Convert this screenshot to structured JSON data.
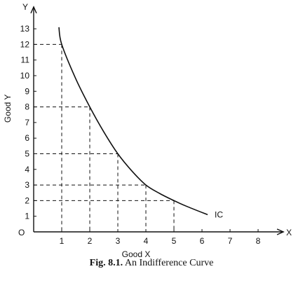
{
  "chart_data": {
    "type": "line",
    "x_axis_label": "Good X",
    "y_axis_label": "Good Y",
    "x_axis_letter": "X",
    "y_axis_letter": "Y",
    "origin_label": "O",
    "x_ticks": [
      1,
      2,
      3,
      4,
      5,
      6,
      7,
      8
    ],
    "y_ticks": [
      1,
      2,
      3,
      4,
      5,
      6,
      7,
      8,
      9,
      10,
      11,
      12,
      13
    ],
    "xlim": [
      0,
      8.9
    ],
    "ylim": [
      0,
      14.4
    ],
    "series": [
      {
        "name": "IC",
        "x": [
          0.9,
          1,
          1.5,
          2,
          2.5,
          3,
          3.5,
          4,
          4.5,
          5,
          5.5,
          6.2
        ],
        "y": [
          13.1,
          12,
          9.8,
          8,
          6.4,
          5,
          3.9,
          3,
          2.45,
          2,
          1.6,
          1.1
        ]
      }
    ],
    "reference_points": [
      {
        "x": 1,
        "y": 12
      },
      {
        "x": 2,
        "y": 8
      },
      {
        "x": 3,
        "y": 5
      },
      {
        "x": 4,
        "y": 3
      },
      {
        "x": 5,
        "y": 2
      }
    ],
    "grid": false
  },
  "caption": {
    "number": "Fig. 8.1.",
    "title": "An Indifference Curve"
  }
}
